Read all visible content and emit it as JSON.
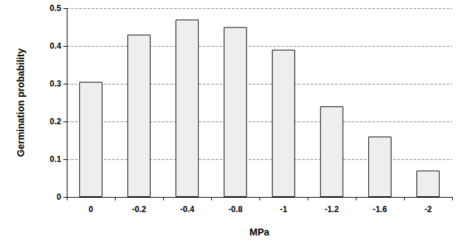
{
  "chart_data": {
    "type": "bar",
    "x_label": "MPa",
    "y_label": "Germination probability",
    "categories": [
      "0",
      "-0.2",
      "-0.4",
      "-0.8",
      "-1",
      "-1.2",
      "-1.6",
      "-2"
    ],
    "values": [
      0.305,
      0.43,
      0.47,
      0.45,
      0.39,
      0.24,
      0.16,
      0.07
    ],
    "color": "#eeeeee",
    "ylim": [
      0,
      0.5
    ],
    "yticks": [
      0,
      0.1,
      0.2,
      0.3,
      0.4,
      0.5
    ],
    "grid": true
  }
}
